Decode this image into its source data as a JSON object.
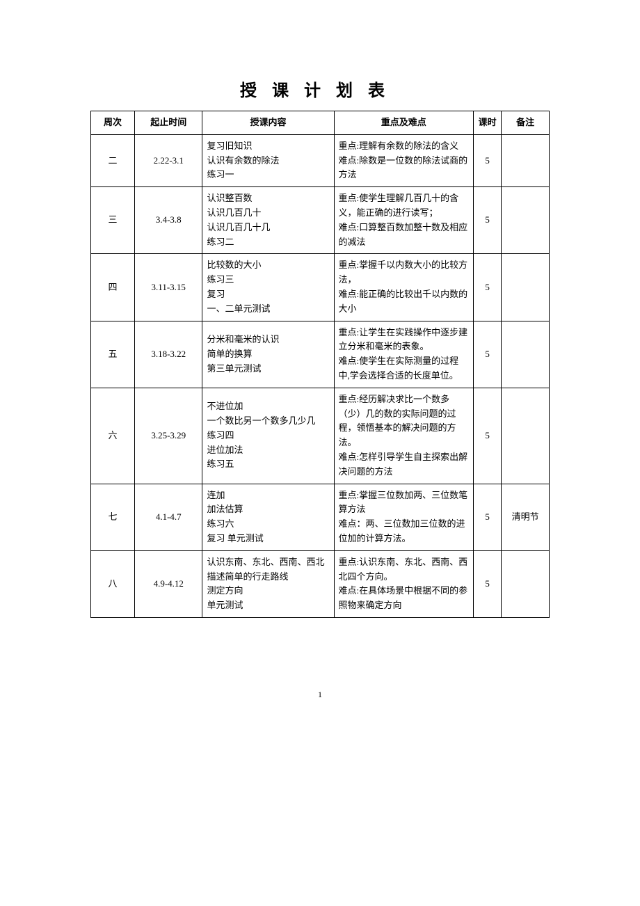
{
  "title": "授课计划表",
  "page_number": "1",
  "columns": [
    {
      "key": "week",
      "label": "周次"
    },
    {
      "key": "time",
      "label": "起止时间"
    },
    {
      "key": "content",
      "label": "授课内容"
    },
    {
      "key": "key",
      "label": "重点及难点"
    },
    {
      "key": "hours",
      "label": "课时"
    },
    {
      "key": "note",
      "label": "备注"
    }
  ],
  "rows": [
    {
      "week": "二",
      "time": "2.22-3.1",
      "content": "复习旧知识\n认识有余数的除法\n练习一",
      "key": "重点:理解有余数的除法的含义\n难点:除数是一位数的除法试商的方法",
      "hours": "5",
      "note": ""
    },
    {
      "week": "三",
      "time": "3.4-3.8",
      "content": "认识整百数\n认识几百几十\n认识几百几十几\n练习二",
      "key": "重点:使学生理解几百几十的含义，能正确的进行读写；\n难点:口算整百数加整十数及相应的减法",
      "hours": "5",
      "note": ""
    },
    {
      "week": "四",
      "time": "3.11-3.15",
      "content": "比较数的大小\n练习三\n复习\n一、二单元测试",
      "key": "重点:掌握千以内数大小的比较方法，\n难点:能正确的比较出千以内数的大小",
      "hours": "5",
      "note": ""
    },
    {
      "week": "五",
      "time": "3.18-3.22",
      "content": "分米和毫米的认识\n简单的换算\n第三单元测试",
      "key": "重点:让学生在实践操作中逐步建立分米和毫米的表象。\n难点:使学生在实际测量的过程中,学会选择合适的长度单位。",
      "hours": "5",
      "note": ""
    },
    {
      "week": "六",
      "time": "3.25-3.29",
      "content": "不进位加\n一个数比另一个数多几少几\n练习四\n进位加法\n练习五",
      "key": "重点:经历解决求比一个数多（少）几的数的实际问题的过程，领悟基本的解决问题的方法。\n难点:怎样引导学生自主探索出解决问题的方法",
      "hours": "5",
      "note": ""
    },
    {
      "week": "七",
      "time": "4.1-4.7",
      "content": "连加\n加法估算\n练习六\n复习 单元测试",
      "key": "重点:掌握三位数加两、三位数笔算方法\n难点：两、三位数加三位数的进位加的计算方法。",
      "hours": "5",
      "note": "清明节"
    },
    {
      "week": "八",
      "time": "4.9-4.12",
      "content": "认识东南、东北、西南、西北\n描述简单的行走路线\n测定方向\n单元测试",
      "key": "重点:认识东南、东北、西南、西北四个方向。\n难点:在具体场景中根据不同的参照物来确定方向",
      "hours": "5",
      "note": ""
    }
  ],
  "style": {
    "background_color": "#ffffff",
    "border_color": "#000000",
    "title_fontsize": 24,
    "cell_fontsize": 13,
    "font_family": "SimSun"
  }
}
